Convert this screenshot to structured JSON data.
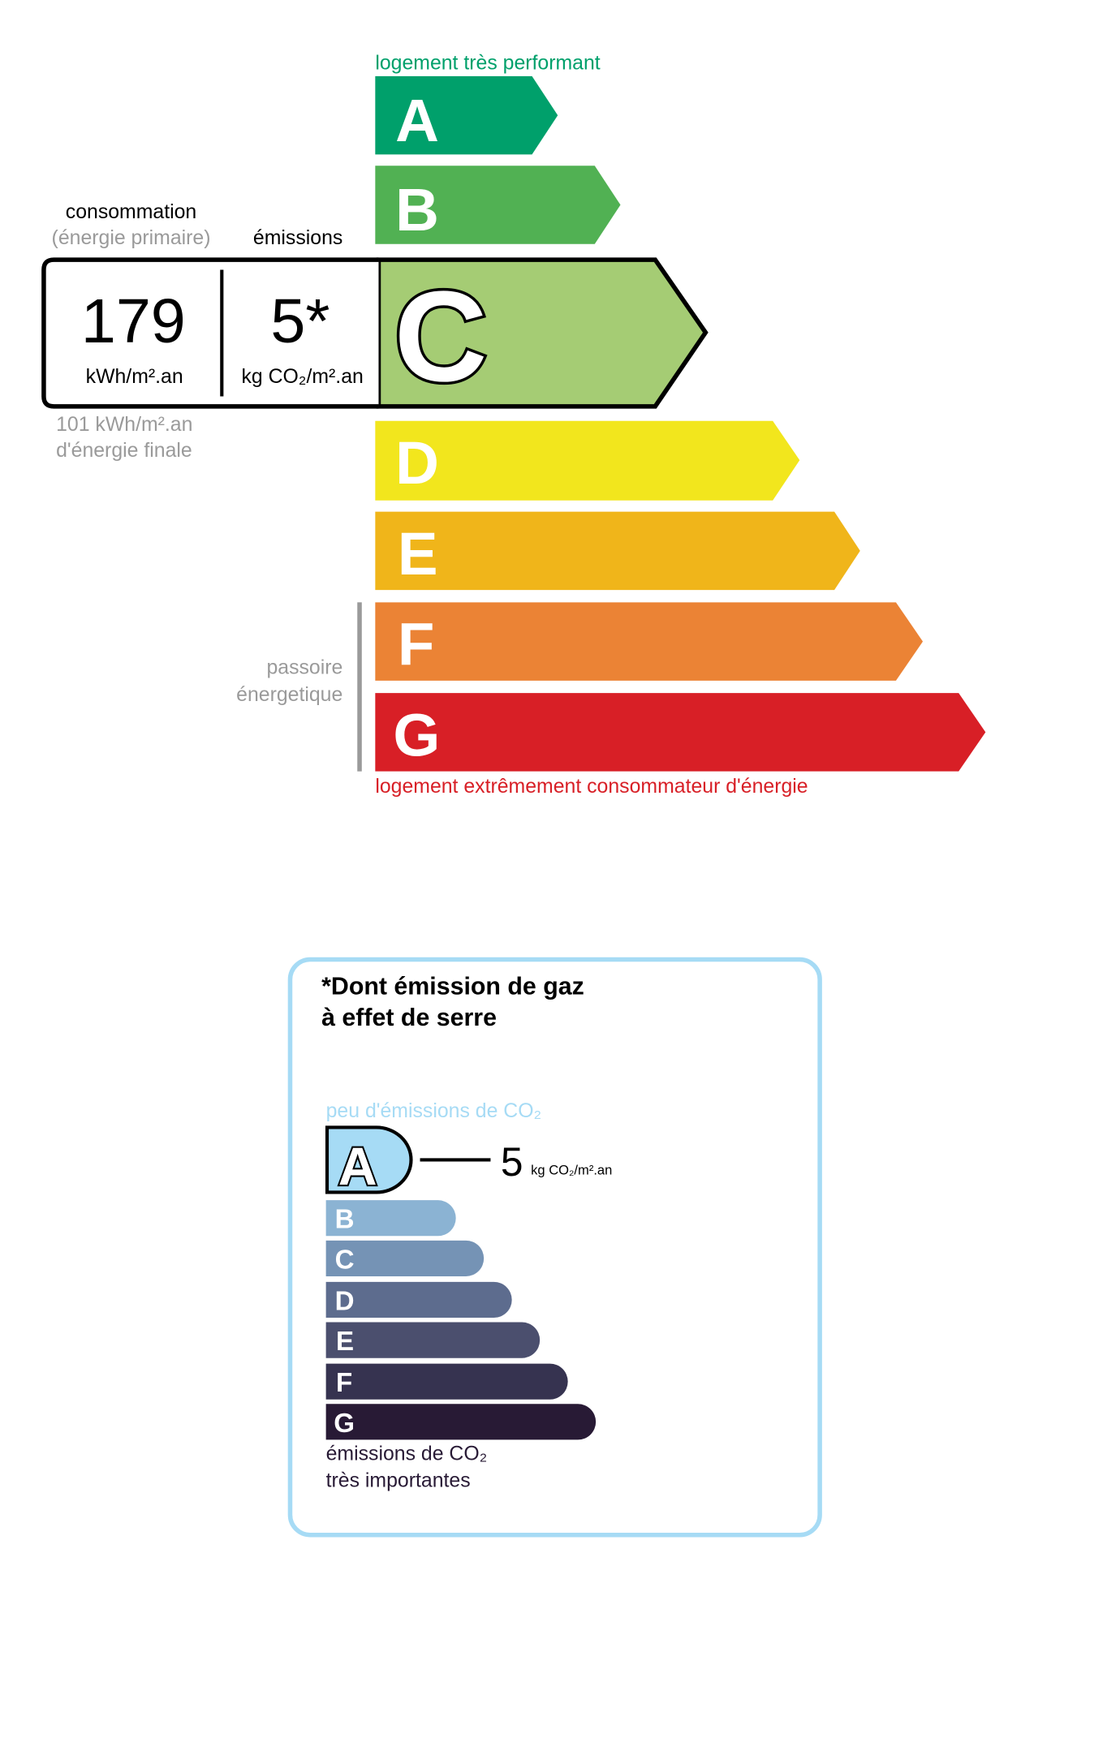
{
  "energy": {
    "top_label": "logement très performant",
    "bottom_label": "logement extrêmement consommateur d'énergie",
    "classes": [
      {
        "letter": "A",
        "color": "#00a06b"
      },
      {
        "letter": "B",
        "color": "#51b153"
      },
      {
        "letter": "C",
        "color": "#a5cc74"
      },
      {
        "letter": "D",
        "color": "#f2e61d"
      },
      {
        "letter": "E",
        "color": "#f0b51a"
      },
      {
        "letter": "F",
        "color": "#eb8335"
      },
      {
        "letter": "G",
        "color": "#d81f26"
      }
    ],
    "current_class": "C",
    "consumption_heading": "consommation",
    "consumption_subheading": "(énergie primaire)",
    "emissions_heading": "émissions",
    "consumption_value": "179",
    "consumption_unit": "kWh/m².an",
    "emissions_value": "5*",
    "emissions_unit": "kg CO₂/m².an",
    "final_energy_line1": "101 kWh/m².an",
    "final_energy_line2": "d'énergie finale",
    "passoire_line1": "passoire",
    "passoire_line2": "énergetique"
  },
  "ghg": {
    "title_line1": "*Dont émission de gaz",
    "title_line2": "à effet de serre",
    "top_label": "peu d'émissions de CO₂",
    "bottom_label_line1": "émissions de CO₂",
    "bottom_label_line2": "très importantes",
    "current_class": "A",
    "value": "5",
    "unit": "kg CO₂/m².an",
    "classes": [
      {
        "letter": "A",
        "color": "#a6dbf5"
      },
      {
        "letter": "B",
        "color": "#8bb3d3"
      },
      {
        "letter": "C",
        "color": "#7593b5"
      },
      {
        "letter": "D",
        "color": "#5d6c8e"
      },
      {
        "letter": "E",
        "color": "#4b4f6e"
      },
      {
        "letter": "F",
        "color": "#363350"
      },
      {
        "letter": "G",
        "color": "#281a35"
      }
    ],
    "border_color": "#a6dbf5"
  }
}
